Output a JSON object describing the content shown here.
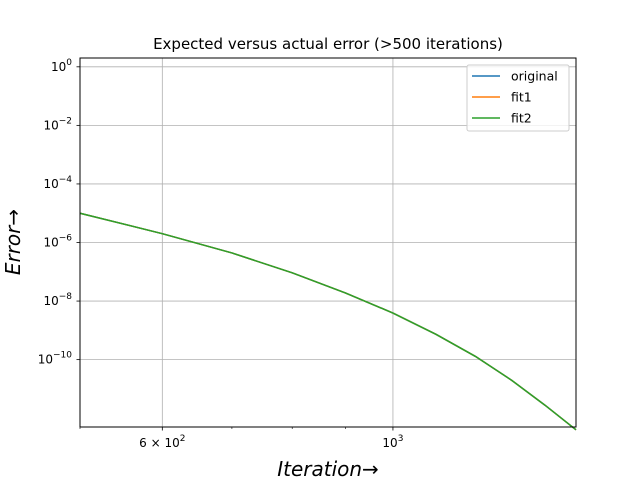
{
  "chart_data": {
    "type": "line",
    "title": "Expected versus actual error (>500 iterations)",
    "xlabel": "Iteration→",
    "ylabel": "Error→",
    "xscale": "log",
    "yscale": "log",
    "xlim": [
      500,
      1500
    ],
    "ylim": [
      5e-13,
      2.0
    ],
    "xticks": [
      {
        "value": 600,
        "base": "6 × 10",
        "exp": "2"
      },
      {
        "value": 1000,
        "base": "10",
        "exp": "3"
      }
    ],
    "xminor": [
      500,
      700,
      800,
      900
    ],
    "yticks": [
      {
        "value": 1,
        "base": "10",
        "exp": "0"
      },
      {
        "value": 0.01,
        "base": "10",
        "exp": "−2"
      },
      {
        "value": 0.0001,
        "base": "10",
        "exp": "−4"
      },
      {
        "value": 1e-06,
        "base": "10",
        "exp": "−6"
      },
      {
        "value": 1e-08,
        "base": "10",
        "exp": "−8"
      },
      {
        "value": 1e-10,
        "base": "10",
        "exp": "−10"
      }
    ],
    "grid": true,
    "legend_position": "top-right",
    "x": [
      500,
      600,
      700,
      800,
      900,
      1000,
      1100,
      1200,
      1300,
      1400,
      1500
    ],
    "series": [
      {
        "name": "original",
        "color": "#1f77b4",
        "values": [
          1e-05,
          2e-06,
          4.4e-07,
          9.2e-08,
          1.9e-08,
          3.9e-09,
          7.3e-10,
          1.3e-10,
          2e-11,
          2.8e-12,
          4e-13
        ]
      },
      {
        "name": "fit1",
        "color": "#ff7f0e",
        "values": [
          1e-05,
          2e-06,
          4.4e-07,
          9.2e-08,
          1.9e-08,
          3.9e-09,
          7.3e-10,
          1.3e-10,
          2e-11,
          2.8e-12,
          4e-13
        ]
      },
      {
        "name": "fit2",
        "color": "#2ca02c",
        "values": [
          1e-05,
          2e-06,
          4.4e-07,
          9.2e-08,
          1.9e-08,
          3.9e-09,
          7.3e-10,
          1.3e-10,
          2e-11,
          2.8e-12,
          4e-13
        ]
      }
    ]
  }
}
